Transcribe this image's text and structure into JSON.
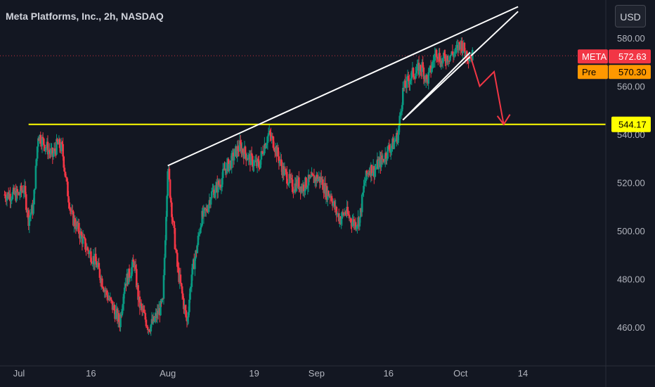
{
  "header": {
    "title": "Meta Platforms, Inc., 2h, NASDAQ",
    "currency": "USD"
  },
  "chart_data": {
    "type": "candlestick",
    "symbol": "META",
    "interval": "2h",
    "exchange": "NASDAQ",
    "ylim": [
      445,
      590
    ],
    "y_ticks": [
      "580.00",
      "560.00",
      "540.00",
      "520.00",
      "500.00",
      "480.00",
      "460.00"
    ],
    "x_ticks": [
      "Jul",
      "16",
      "Aug",
      "19",
      "Sep",
      "16",
      "Oct",
      "14"
    ],
    "x_tick_dates": [
      "2024-07-01",
      "2024-07-16",
      "2024-08-01",
      "2024-08-19",
      "2024-09-01",
      "2024-09-16",
      "2024-10-01",
      "2024-10-14"
    ],
    "close_path": [
      [
        "2024-07-01",
        515
      ],
      [
        "2024-07-02",
        518
      ],
      [
        "2024-07-03",
        505
      ],
      [
        "2024-07-04",
        510
      ],
      [
        "2024-07-05",
        540
      ],
      [
        "2024-07-08",
        531
      ],
      [
        "2024-07-09",
        536
      ],
      [
        "2024-07-10",
        534
      ],
      [
        "2024-07-11",
        518
      ],
      [
        "2024-07-12",
        506
      ],
      [
        "2024-07-13",
        502
      ],
      [
        "2024-07-15",
        493
      ],
      [
        "2024-07-17",
        487
      ],
      [
        "2024-07-19",
        475
      ],
      [
        "2024-07-22",
        462
      ],
      [
        "2024-07-23",
        478
      ],
      [
        "2024-07-24",
        482
      ],
      [
        "2024-07-25",
        487
      ],
      [
        "2024-07-26",
        470
      ],
      [
        "2024-07-27",
        465
      ],
      [
        "2024-07-28",
        460
      ],
      [
        "2024-07-29",
        462
      ],
      [
        "2024-07-30",
        466
      ],
      [
        "2024-07-31",
        470
      ],
      [
        "2024-08-01",
        527
      ],
      [
        "2024-08-02",
        505
      ],
      [
        "2024-08-03",
        485
      ],
      [
        "2024-08-05",
        462
      ],
      [
        "2024-08-06",
        482
      ],
      [
        "2024-08-07",
        492
      ],
      [
        "2024-08-08",
        505
      ],
      [
        "2024-08-09",
        508
      ],
      [
        "2024-08-10",
        515
      ],
      [
        "2024-08-12",
        520
      ],
      [
        "2024-08-13",
        526
      ],
      [
        "2024-08-14",
        528
      ],
      [
        "2024-08-15",
        532
      ],
      [
        "2024-08-16",
        535
      ],
      [
        "2024-08-18",
        530
      ],
      [
        "2024-08-19",
        528
      ],
      [
        "2024-08-20",
        527
      ],
      [
        "2024-08-21",
        535
      ],
      [
        "2024-08-22",
        540
      ],
      [
        "2024-08-23",
        537
      ],
      [
        "2024-08-25",
        525
      ],
      [
        "2024-08-26",
        522
      ],
      [
        "2024-08-27",
        518
      ],
      [
        "2024-08-28",
        520
      ],
      [
        "2024-08-29",
        518
      ],
      [
        "2024-08-30",
        520
      ],
      [
        "2024-09-01",
        522
      ],
      [
        "2024-09-02",
        521
      ],
      [
        "2024-09-03",
        516
      ],
      [
        "2024-09-04",
        515
      ],
      [
        "2024-09-05",
        508
      ],
      [
        "2024-09-06",
        505
      ],
      [
        "2024-09-07",
        508
      ],
      [
        "2024-09-08",
        505
      ],
      [
        "2024-09-09",
        503
      ],
      [
        "2024-09-10",
        505
      ],
      [
        "2024-09-11",
        520
      ],
      [
        "2024-09-12",
        526
      ],
      [
        "2024-09-13",
        525
      ],
      [
        "2024-09-14",
        528
      ],
      [
        "2024-09-15",
        530
      ],
      [
        "2024-09-16",
        534
      ],
      [
        "2024-09-17",
        536
      ],
      [
        "2024-09-18",
        540
      ],
      [
        "2024-09-19",
        558
      ],
      [
        "2024-09-20",
        562
      ],
      [
        "2024-09-21",
        565
      ],
      [
        "2024-09-23",
        568
      ],
      [
        "2024-09-24",
        562
      ],
      [
        "2024-09-25",
        568
      ],
      [
        "2024-09-26",
        575
      ],
      [
        "2024-09-27",
        570
      ],
      [
        "2024-09-28",
        572
      ],
      [
        "2024-09-30",
        574
      ],
      [
        "2024-10-01",
        578
      ],
      [
        "2024-10-02",
        574
      ],
      [
        "2024-10-03",
        572.63
      ]
    ],
    "horizontal_level": {
      "value": 544.17,
      "label": "544.17",
      "color": "#ffff00"
    },
    "trendlines": [
      {
        "name": "upper-wedge-line",
        "color": "#ffffff",
        "points": [
          [
            "2024-08-01",
            527
          ],
          [
            "2024-10-13",
            593
          ]
        ]
      },
      {
        "name": "lower-wedge-line",
        "color": "#ffffff",
        "points": [
          [
            "2024-09-19",
            546
          ],
          [
            "2024-10-13",
            591
          ]
        ]
      },
      {
        "name": "wedge-resistance",
        "color": "#ffffff",
        "points": [
          [
            "2024-09-19",
            546
          ],
          [
            "2024-10-03",
            574
          ]
        ]
      }
    ],
    "projection": {
      "color": "#f23645",
      "points": [
        [
          "2024-10-03",
          573
        ],
        [
          "2024-10-05",
          560
        ],
        [
          "2024-10-08",
          566
        ],
        [
          "2024-10-10",
          544.17
        ]
      ]
    },
    "price_tags": [
      {
        "name": "META",
        "value": "572.63",
        "color": "#f23645"
      },
      {
        "name": "Pre",
        "value": "570.30",
        "color": "#ff9800"
      }
    ],
    "last_price_line": {
      "value": 572.63,
      "color": "#f23645"
    },
    "colors": {
      "up": "#089981",
      "down": "#f23645",
      "background": "#131722"
    }
  }
}
